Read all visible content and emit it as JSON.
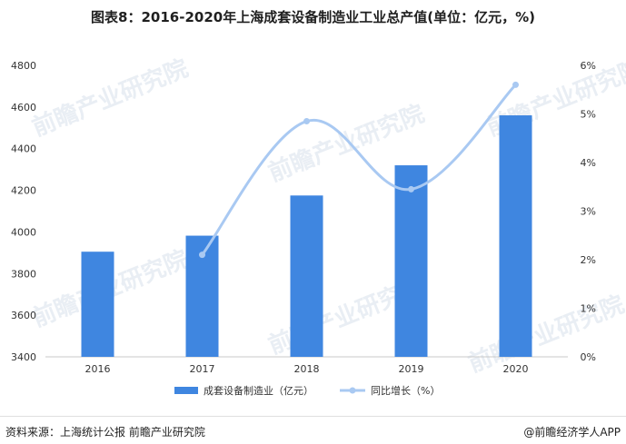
{
  "title": "图表8：2016-2020年上海成套设备制造业工业总产值(单位：亿元，%)",
  "chart_data": {
    "type": "bar",
    "categories": [
      "2016",
      "2017",
      "2018",
      "2019",
      "2020"
    ],
    "series": [
      {
        "name": "成套设备制造业（亿元）",
        "type": "bar",
        "axis": "left",
        "values": [
          3905,
          3982,
          4175,
          4320,
          4560
        ]
      },
      {
        "name": "同比增长（%）",
        "type": "line",
        "axis": "right",
        "values": [
          null,
          2.1,
          4.85,
          3.45,
          5.6
        ]
      }
    ],
    "y_left": {
      "min": 3400,
      "max": 4800,
      "ticks": [
        3400,
        3600,
        3800,
        4000,
        4200,
        4400,
        4600,
        4800
      ]
    },
    "y_right": {
      "min": 0,
      "max": 6,
      "ticks": [
        "0%",
        "1%",
        "2%",
        "3%",
        "4%",
        "5%",
        "6%"
      ]
    },
    "legend_position": "bottom",
    "colors": {
      "bar": "#3f86e0",
      "line": "#a9c9f2",
      "axis": "#c8c8c8"
    }
  },
  "watermark": {
    "text": "前瞻产业研究院"
  },
  "footer": {
    "source": "资料来源：上海统计公报 前瞻产业研究院",
    "brand": "@前瞻经济学人APP"
  }
}
